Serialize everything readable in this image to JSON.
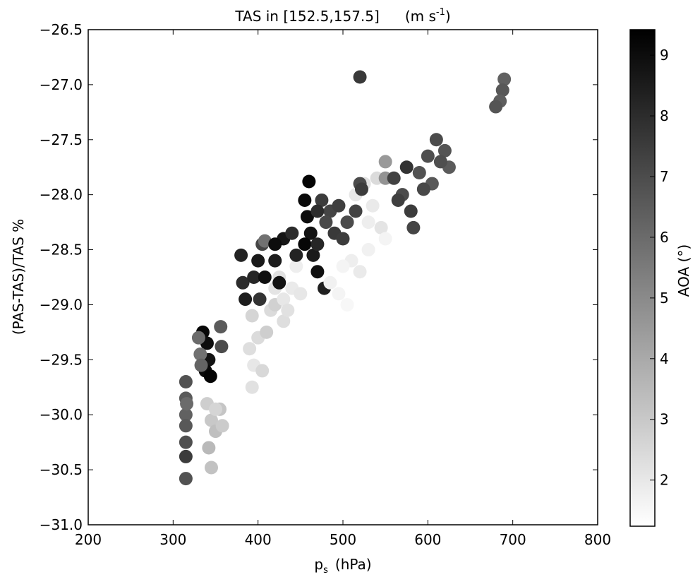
{
  "chart_data": {
    "type": "scatter",
    "title": "TAS in [152.5,157.5]",
    "title_units": [
      "(m s",
      "-1",
      ")"
    ],
    "xlabel": [
      "p",
      "s",
      "(hPa)"
    ],
    "ylabel": "(PAS-TAS)/TAS %",
    "colorbar_label": "AOA (°)",
    "colormap": "gray_r",
    "xlim": [
      200,
      800
    ],
    "xticks": [
      200,
      300,
      400,
      500,
      600,
      700,
      800
    ],
    "ylim": [
      -31.0,
      -26.5
    ],
    "yticks": [
      {
        "value": -26.5,
        "label": "−26.5"
      },
      {
        "value": -27.0,
        "label": "−27.0"
      },
      {
        "value": -27.5,
        "label": "−27.5"
      },
      {
        "value": -28.0,
        "label": "−28.0"
      },
      {
        "value": -28.5,
        "label": "−28.5"
      },
      {
        "value": -29.0,
        "label": "−29.0"
      },
      {
        "value": -29.5,
        "label": "−29.5"
      },
      {
        "value": -30.0,
        "label": "−30.0"
      },
      {
        "value": -30.5,
        "label": "−30.5"
      },
      {
        "value": -31.0,
        "label": "−31.0"
      }
    ],
    "clim": [
      1.24,
      9.42
    ],
    "cticks": [
      2,
      3,
      4,
      5,
      6,
      7,
      8,
      9
    ],
    "x": [
      315,
      315,
      315,
      315,
      315,
      315,
      315,
      316,
      335,
      340,
      342,
      338,
      344,
      330,
      332,
      333,
      340,
      345,
      350,
      355,
      342,
      345,
      358,
      350,
      356,
      357,
      380,
      382,
      385,
      395,
      400,
      405,
      408,
      402,
      408,
      393,
      390,
      395,
      393,
      400,
      405,
      410,
      415,
      420,
      420,
      430,
      440,
      430,
      425,
      445,
      450,
      435,
      420,
      425,
      430,
      440,
      445,
      420,
      460,
      455,
      458,
      462,
      455,
      465,
      470,
      478,
      470,
      475,
      485,
      495,
      505,
      515,
      490,
      480,
      500,
      470,
      485,
      495,
      505,
      510,
      520,
      530,
      500,
      515,
      525,
      535,
      545,
      540,
      530,
      550,
      520,
      522,
      550,
      550,
      520,
      560,
      570,
      580,
      583,
      575,
      565,
      590,
      600,
      610,
      620,
      625,
      605,
      615,
      595,
      690,
      688,
      685,
      680
    ],
    "values": [
      -29.7,
      -29.85,
      -30.0,
      -30.1,
      -30.25,
      -30.38,
      -30.58,
      -29.9,
      -29.25,
      -29.35,
      -29.5,
      -29.6,
      -29.65,
      -29.3,
      -29.45,
      -29.55,
      -29.9,
      -30.05,
      -30.15,
      -29.95,
      -30.3,
      -30.48,
      -30.1,
      -29.95,
      -29.2,
      -29.38,
      -28.55,
      -28.8,
      -28.95,
      -28.75,
      -28.6,
      -28.45,
      -28.75,
      -28.95,
      -28.42,
      -29.1,
      -29.4,
      -29.55,
      -29.75,
      -29.3,
      -29.6,
      -29.25,
      -29.05,
      -29.0,
      -28.85,
      -28.95,
      -28.85,
      -29.15,
      -28.75,
      -28.65,
      -28.9,
      -29.05,
      -28.6,
      -28.8,
      -28.4,
      -28.35,
      -28.55,
      -28.45,
      -27.88,
      -28.05,
      -28.2,
      -28.35,
      -28.45,
      -28.55,
      -28.7,
      -28.85,
      -28.45,
      -28.05,
      -28.15,
      -28.1,
      -28.25,
      -28.15,
      -28.35,
      -28.25,
      -28.4,
      -28.15,
      -28.8,
      -28.9,
      -29.0,
      -28.6,
      -28.7,
      -28.5,
      -28.65,
      -28.0,
      -27.9,
      -28.1,
      -28.3,
      -27.85,
      -28.25,
      -28.4,
      -27.9,
      -27.95,
      -27.7,
      -27.85,
      -26.93,
      -27.85,
      -28.0,
      -28.15,
      -28.3,
      -27.75,
      -28.05,
      -27.8,
      -27.65,
      -27.5,
      -27.6,
      -27.75,
      -27.9,
      -27.7,
      -27.95,
      -26.95,
      -27.05,
      -27.15,
      -27.2
    ],
    "color_values": [
      6.8,
      6.5,
      6.3,
      6.6,
      6.9,
      7.5,
      6.8,
      6.0,
      9.2,
      9.0,
      8.8,
      9.1,
      9.3,
      6.0,
      5.8,
      6.2,
      2.8,
      3.0,
      3.3,
      3.1,
      3.5,
      3.2,
      2.9,
      2.6,
      6.5,
      7.0,
      8.3,
      8.0,
      8.5,
      8.2,
      8.6,
      7.2,
      8.9,
      7.8,
      5.8,
      2.6,
      2.3,
      2.0,
      2.2,
      2.4,
      2.5,
      2.8,
      2.4,
      2.7,
      2.1,
      2.0,
      1.9,
      2.3,
      2.2,
      1.8,
      2.0,
      2.2,
      8.5,
      8.8,
      8.7,
      8.0,
      8.3,
      9.0,
      9.3,
      9.1,
      9.0,
      8.8,
      9.2,
      8.6,
      8.9,
      8.4,
      8.2,
      7.5,
      7.2,
      7.4,
      7.0,
      7.3,
      7.6,
      7.1,
      7.5,
      8.0,
      1.7,
      1.6,
      1.5,
      1.8,
      1.9,
      1.7,
      1.6,
      2.0,
      2.2,
      1.9,
      2.1,
      2.4,
      1.8,
      1.6,
      7.0,
      7.5,
      4.5,
      4.7,
      7.6,
      7.3,
      7.0,
      7.5,
      7.2,
      7.8,
      7.4,
      6.8,
      6.9,
      7.0,
      6.7,
      6.5,
      6.6,
      6.9,
      7.1,
      6.3,
      6.6,
      6.4,
      6.7
    ]
  }
}
